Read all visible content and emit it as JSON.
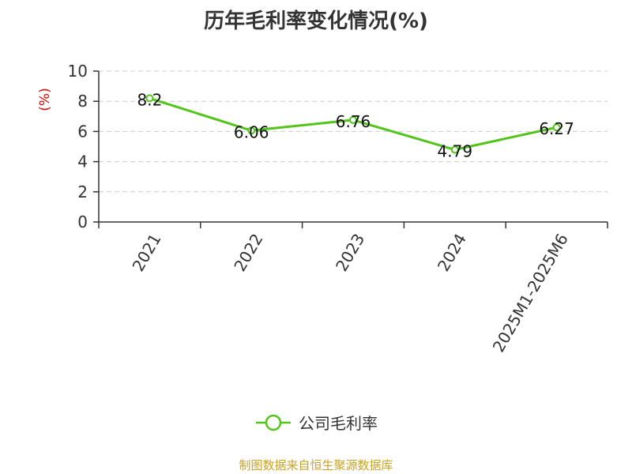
{
  "chart_data": {
    "type": "line",
    "title": "历年毛利率变化情况(%)",
    "ylabel": "(%)",
    "xlabel": "",
    "categories": [
      "2021",
      "2022",
      "2023",
      "2024",
      "2025M1-2025M6"
    ],
    "series": [
      {
        "name": "公司毛利率",
        "values": [
          8.2,
          6.06,
          6.76,
          4.79,
          6.27
        ]
      }
    ],
    "data_labels": [
      "8.2",
      "6.06",
      "6.76",
      "4.79",
      "6.27"
    ],
    "ylim": [
      0,
      10
    ],
    "yticks": [
      0,
      2,
      4,
      6,
      8,
      10
    ],
    "ytick_labels": [
      "0",
      "2",
      "4",
      "6",
      "8",
      "10"
    ],
    "grid": true,
    "legend_position": "bottom"
  },
  "colors": {
    "line": "#52c41a",
    "ylabel": "#e60000",
    "source": "#c9a227",
    "axis": "#333333",
    "grid": "#cccccc"
  },
  "footer": {
    "source": "制图数据来自恒生聚源数据库"
  }
}
